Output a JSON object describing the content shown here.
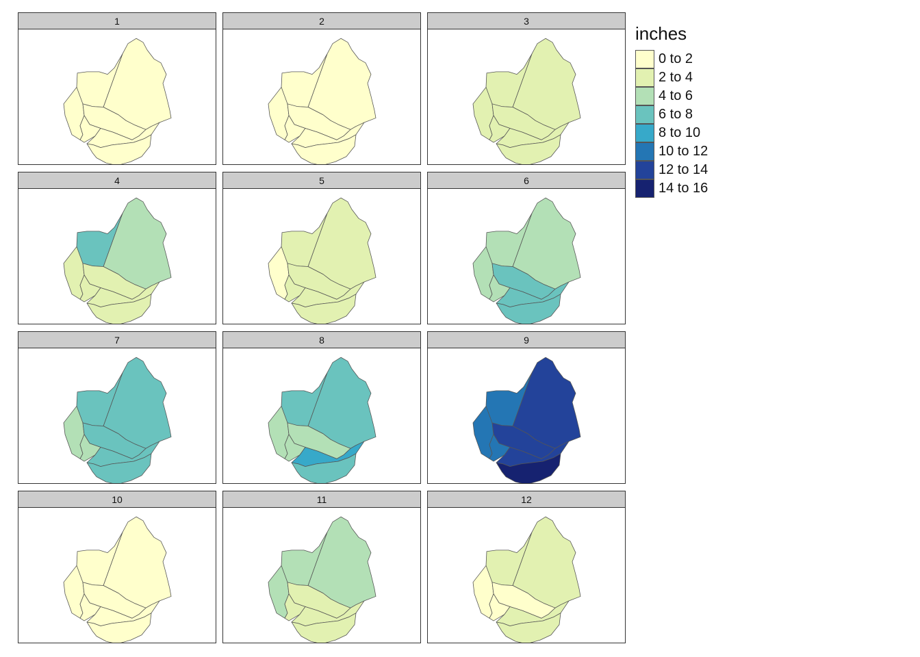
{
  "legend": {
    "title": "inches",
    "classes": [
      {
        "label": "0 to 2",
        "color": "#ffffcc"
      },
      {
        "label": "2 to 4",
        "color": "#e2f1b1"
      },
      {
        "label": "4 to 6",
        "color": "#b3e0b6"
      },
      {
        "label": "6 to 8",
        "color": "#6ac3be"
      },
      {
        "label": "8 to 10",
        "color": "#37a9c9"
      },
      {
        "label": "10 to 12",
        "color": "#2476b4"
      },
      {
        "label": "12 to 14",
        "color": "#23439a"
      },
      {
        "label": "14 to 16",
        "color": "#162270"
      }
    ]
  },
  "panels": [
    {
      "label": "1",
      "classes": [
        0,
        0,
        0,
        0,
        0,
        0,
        0
      ]
    },
    {
      "label": "2",
      "classes": [
        0,
        0,
        0,
        0,
        0,
        0,
        0
      ]
    },
    {
      "label": "3",
      "classes": [
        1,
        1,
        1,
        1,
        1,
        1,
        1
      ]
    },
    {
      "label": "4",
      "classes": [
        2,
        3,
        1,
        1,
        1,
        1,
        1
      ]
    },
    {
      "label": "5",
      "classes": [
        1,
        1,
        0,
        1,
        1,
        1,
        1
      ]
    },
    {
      "label": "6",
      "classes": [
        2,
        2,
        2,
        3,
        2,
        3,
        3
      ]
    },
    {
      "label": "7",
      "classes": [
        3,
        3,
        2,
        3,
        2,
        3,
        3
      ]
    },
    {
      "label": "8",
      "classes": [
        3,
        3,
        2,
        2,
        2,
        4,
        3
      ]
    },
    {
      "label": "9",
      "classes": [
        6,
        5,
        5,
        6,
        5,
        6,
        7
      ]
    },
    {
      "label": "10",
      "classes": [
        0,
        0,
        0,
        0,
        0,
        0,
        0
      ]
    },
    {
      "label": "11",
      "classes": [
        2,
        2,
        2,
        1,
        1,
        1,
        1
      ]
    },
    {
      "label": "12",
      "classes": [
        1,
        1,
        0,
        0,
        0,
        1,
        1
      ]
    }
  ]
}
